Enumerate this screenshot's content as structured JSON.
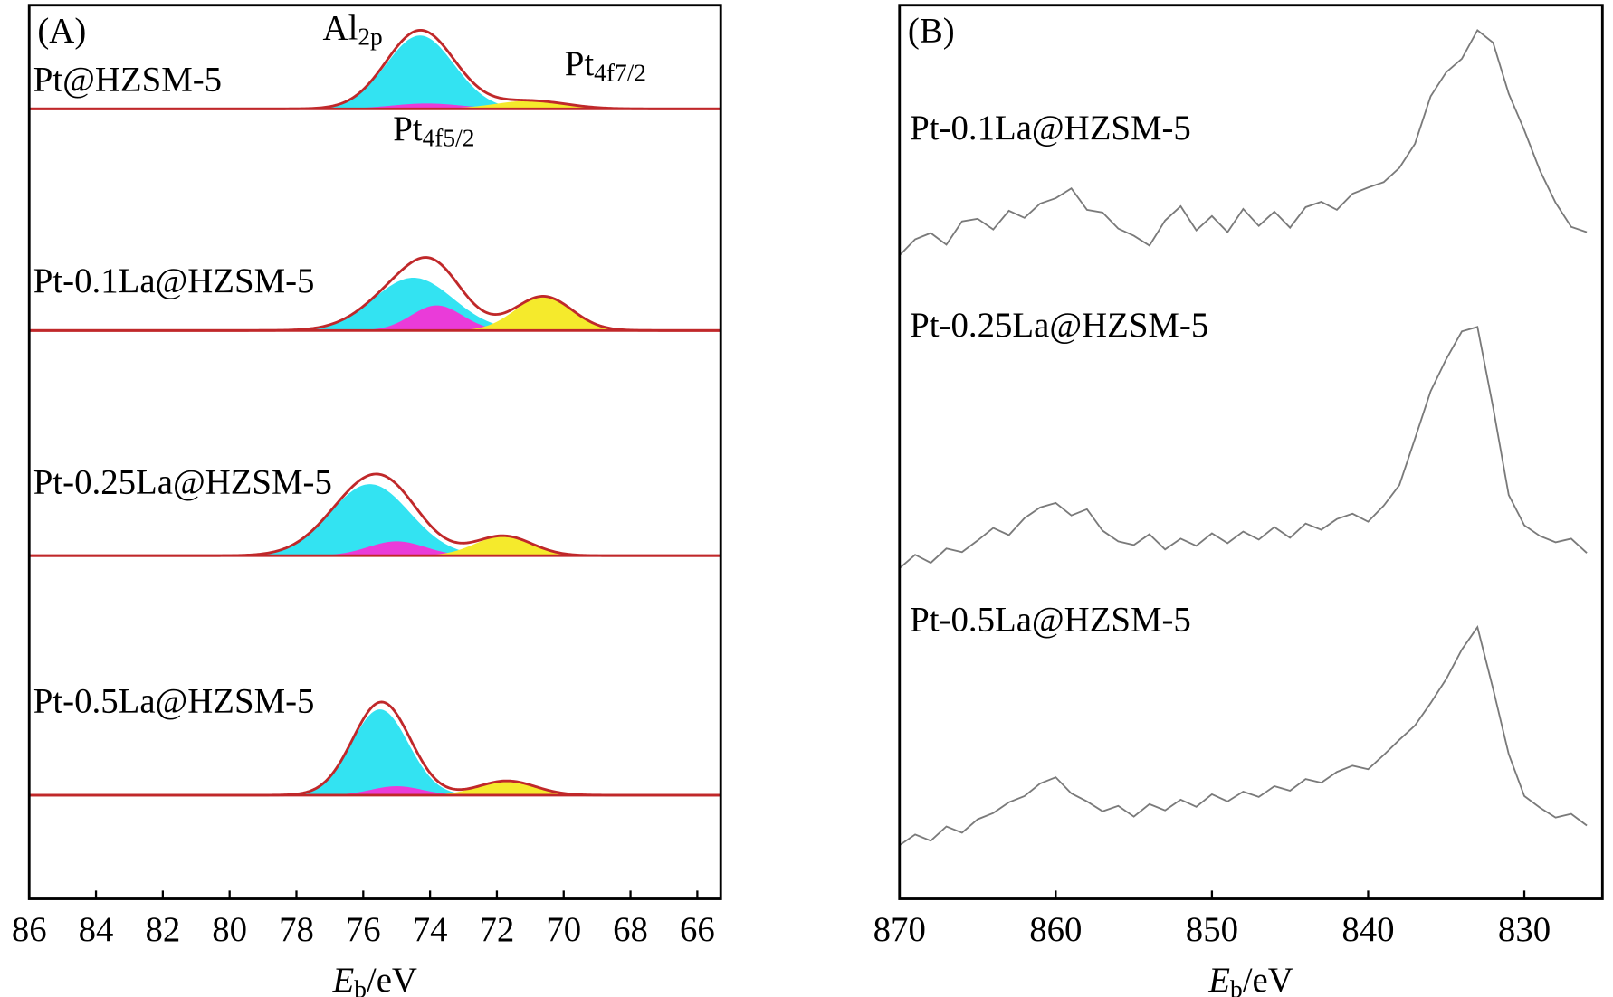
{
  "chart_data": [
    {
      "type": "xps-fit",
      "panel_label": "(A)",
      "xlabel": {
        "text": "E",
        "sub": "b",
        "unit": "/eV"
      },
      "xlim": [
        86,
        65.3
      ],
      "xticks": [
        86,
        84,
        82,
        80,
        78,
        76,
        74,
        72,
        70,
        68,
        66
      ],
      "ylim": [
        0,
        100
      ],
      "fit_color": "#c0282a",
      "annotations": [
        {
          "text": "Al",
          "sub": "2p"
        },
        {
          "text": "Pt",
          "sub": "4f7/2"
        },
        {
          "text": "Pt",
          "sub": "4f5/2"
        }
      ],
      "samples": [
        {
          "label": "Pt@HZSM-5",
          "baseline": 88.4,
          "peaks": [
            {
              "center": 74.3,
              "height": 8.2,
              "fwhm": 2.4,
              "color": "#33e3f2"
            },
            {
              "center": 74.1,
              "height": 0.6,
              "fwhm": 2.5,
              "color": "#ea3bd9"
            },
            {
              "center": 71.0,
              "height": 0.9,
              "fwhm": 2.5,
              "color": "#f5ea2c"
            }
          ]
        },
        {
          "label": "Pt-0.1La@HZSM-5",
          "baseline": 63.6,
          "peaks": [
            {
              "center": 74.5,
              "height": 5.9,
              "fwhm": 2.8,
              "color": "#33e3f2"
            },
            {
              "center": 73.8,
              "height": 2.8,
              "fwhm": 1.8,
              "color": "#ea3bd9"
            },
            {
              "center": 70.6,
              "height": 3.8,
              "fwhm": 2.0,
              "color": "#f5ea2c"
            }
          ]
        },
        {
          "label": "Pt-0.25La@HZSM-5",
          "baseline": 38.4,
          "peaks": [
            {
              "center": 75.8,
              "height": 8.0,
              "fwhm": 2.8,
              "color": "#33e3f2"
            },
            {
              "center": 75.0,
              "height": 1.6,
              "fwhm": 2.0,
              "color": "#ea3bd9"
            },
            {
              "center": 71.8,
              "height": 2.2,
              "fwhm": 2.0,
              "color": "#f5ea2c"
            }
          ]
        },
        {
          "label": "Pt-0.5La@HZSM-5",
          "baseline": 11.6,
          "peaks": [
            {
              "center": 75.5,
              "height": 9.6,
              "fwhm": 2.0,
              "color": "#33e3f2"
            },
            {
              "center": 75.0,
              "height": 1.0,
              "fwhm": 1.8,
              "color": "#ea3bd9"
            },
            {
              "center": 71.7,
              "height": 1.6,
              "fwhm": 2.0,
              "color": "#f5ea2c"
            }
          ]
        }
      ]
    },
    {
      "type": "line",
      "panel_label": "(B)",
      "xlabel": {
        "text": "E",
        "sub": "b",
        "unit": "/eV"
      },
      "xlim": [
        870,
        825
      ],
      "xticks": [
        870,
        860,
        850,
        840,
        830
      ],
      "ylim": [
        0,
        100
      ],
      "color": "#7a7a7a",
      "x": [
        870,
        869,
        868,
        867,
        866,
        865,
        864,
        863,
        862,
        861,
        860,
        859,
        858,
        857,
        856,
        855,
        854,
        853,
        852,
        851,
        850,
        849,
        848,
        847,
        846,
        845,
        844,
        843,
        842,
        841,
        840,
        839,
        838,
        837,
        836,
        835,
        834,
        833,
        832,
        831,
        830,
        829,
        828,
        827,
        826
      ],
      "series": [
        {
          "name": "Pt-0.1La@HZSM-5",
          "values": [
            72.0,
            73.8,
            74.5,
            73.2,
            75.8,
            76.1,
            74.9,
            77.0,
            76.2,
            77.8,
            78.4,
            79.5,
            77.1,
            76.8,
            75.0,
            74.2,
            73.1,
            75.9,
            77.5,
            74.8,
            76.4,
            74.6,
            77.2,
            75.3,
            76.9,
            75.1,
            77.4,
            78.0,
            77.1,
            78.9,
            79.6,
            80.2,
            81.8,
            84.5,
            89.8,
            92.5,
            94.0,
            97.2,
            95.8,
            90.1,
            86.0,
            81.5,
            77.9,
            75.2,
            74.6
          ]
        },
        {
          "name": "Pt-0.25La@HZSM-5",
          "values": [
            37.0,
            38.5,
            37.6,
            39.2,
            38.8,
            40.1,
            41.5,
            40.7,
            42.6,
            43.8,
            44.3,
            42.9,
            43.6,
            41.2,
            40.0,
            39.6,
            40.8,
            39.1,
            40.3,
            39.5,
            40.9,
            39.8,
            41.1,
            40.2,
            41.6,
            40.4,
            42.0,
            41.3,
            42.5,
            43.1,
            42.2,
            44.0,
            46.3,
            51.5,
            56.8,
            60.4,
            63.5,
            64.0,
            55.0,
            45.2,
            41.8,
            40.6,
            39.9,
            40.3,
            38.7
          ]
        },
        {
          "name": "Pt-0.5La@HZSM-5",
          "values": [
            6.0,
            7.2,
            6.5,
            8.1,
            7.4,
            8.9,
            9.6,
            10.8,
            11.5,
            12.9,
            13.6,
            11.8,
            10.9,
            9.8,
            10.4,
            9.2,
            10.6,
            9.9,
            11.1,
            10.3,
            11.7,
            10.9,
            12.0,
            11.4,
            12.6,
            12.1,
            13.4,
            13.0,
            14.2,
            14.9,
            14.5,
            16.1,
            17.8,
            19.4,
            21.9,
            24.6,
            27.9,
            30.4,
            23.5,
            16.2,
            11.5,
            10.2,
            9.1,
            9.5,
            8.2
          ]
        }
      ]
    }
  ]
}
